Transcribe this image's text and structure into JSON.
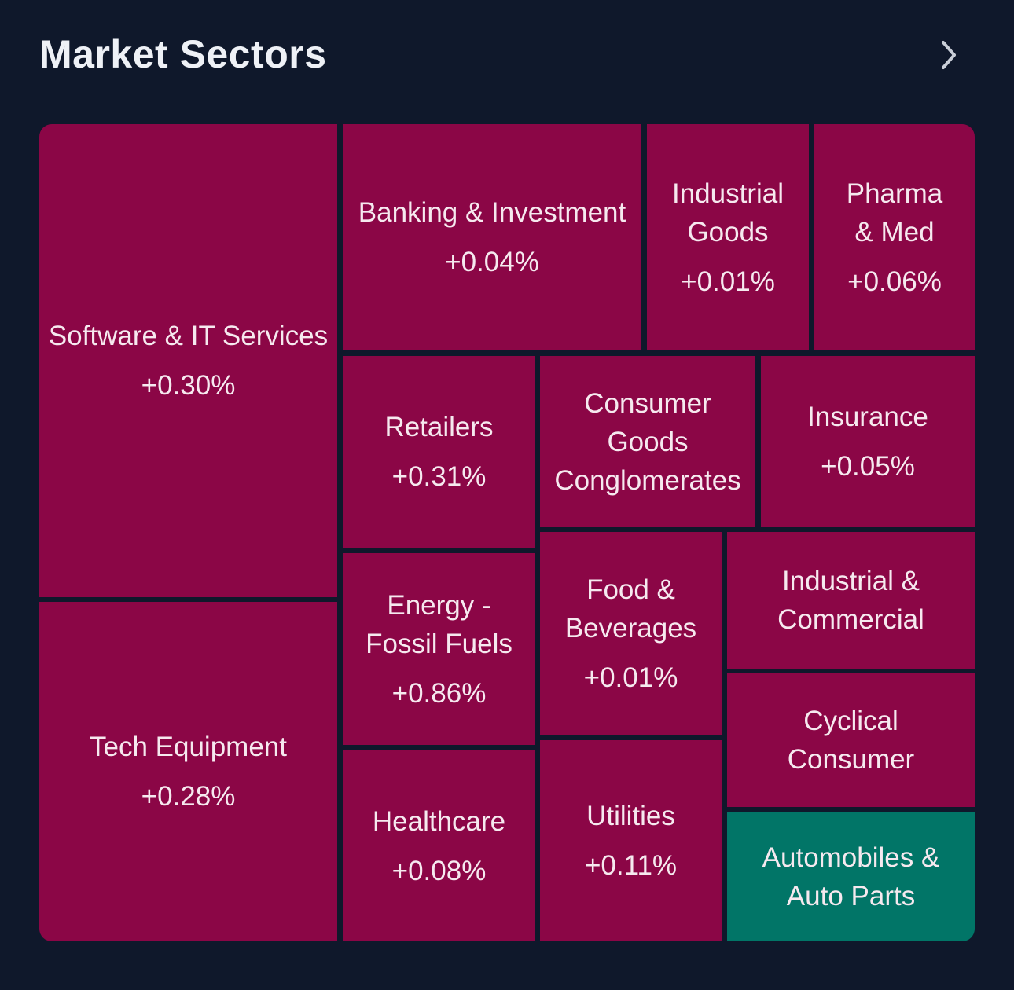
{
  "header": {
    "title": "Market Sectors"
  },
  "colors": {
    "background": "#0f182b",
    "negative": "#8b0646",
    "positive": "#017567"
  },
  "sectors": [
    {
      "name": "Software & IT Services",
      "change": "+0.30%",
      "status": "negative"
    },
    {
      "name": "Tech Equipment",
      "change": "+0.28%",
      "status": "negative"
    },
    {
      "name": "Banking & Investment",
      "change": "+0.04%",
      "status": "negative"
    },
    {
      "name": "Industrial\nGoods",
      "change": "+0.01%",
      "status": "negative"
    },
    {
      "name": "Pharma\n& Med",
      "change": "+0.06%",
      "status": "negative"
    },
    {
      "name": "Retailers",
      "change": "+0.31%",
      "status": "negative"
    },
    {
      "name": "Consumer\nGoods\nConglomerates",
      "change": "",
      "status": "negative"
    },
    {
      "name": "Insurance",
      "change": "+0.05%",
      "status": "negative"
    },
    {
      "name": "Energy -\nFossil Fuels",
      "change": "+0.86%",
      "status": "negative"
    },
    {
      "name": "Food &\nBeverages",
      "change": "+0.01%",
      "status": "negative"
    },
    {
      "name": "Industrial &\nCommercial",
      "change": "",
      "status": "negative"
    },
    {
      "name": "Cyclical\nConsumer",
      "change": "",
      "status": "negative"
    },
    {
      "name": "Healthcare",
      "change": "+0.08%",
      "status": "negative"
    },
    {
      "name": "Utilities",
      "change": "+0.11%",
      "status": "negative"
    },
    {
      "name": "Automobiles &\nAuto Parts",
      "change": "",
      "status": "positive"
    }
  ]
}
